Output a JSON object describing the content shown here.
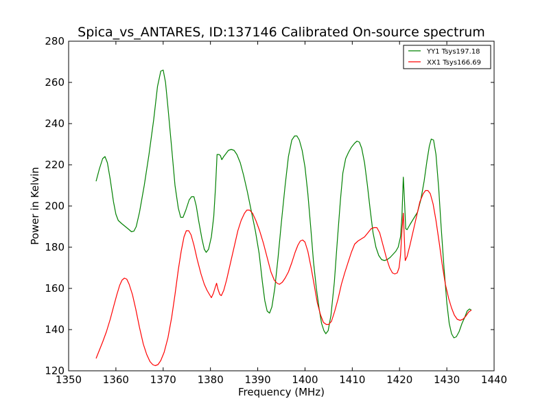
{
  "chart_data": {
    "type": "line",
    "title": "Spica_vs_ANTARES, ID:137146 Calibrated On-source spectrum",
    "xlabel": "Frequency (MHz)",
    "ylabel": "Power in Kelvin",
    "xlim": [
      1350,
      1440
    ],
    "ylim": [
      120,
      280
    ],
    "xticks": [
      1350,
      1360,
      1370,
      1380,
      1390,
      1400,
      1410,
      1420,
      1430,
      1440
    ],
    "yticks": [
      120,
      140,
      160,
      180,
      200,
      220,
      240,
      260,
      280
    ],
    "grid": false,
    "legend_position": "top-right",
    "series": [
      {
        "name": "YY1 Tsys197.18",
        "color": "#008000",
        "points": [
          [
            1355.8,
            212
          ],
          [
            1356.5,
            218
          ],
          [
            1357.2,
            223
          ],
          [
            1357.7,
            224
          ],
          [
            1358.2,
            221
          ],
          [
            1358.8,
            213
          ],
          [
            1359.5,
            202
          ],
          [
            1360.0,
            196
          ],
          [
            1360.5,
            193
          ],
          [
            1361.2,
            191.5
          ],
          [
            1362.0,
            190
          ],
          [
            1362.8,
            188.5
          ],
          [
            1363.3,
            187.5
          ],
          [
            1363.8,
            187.8
          ],
          [
            1364.3,
            190
          ],
          [
            1365.0,
            197
          ],
          [
            1366.0,
            210
          ],
          [
            1367.0,
            225
          ],
          [
            1368.0,
            242
          ],
          [
            1368.8,
            258
          ],
          [
            1369.5,
            265.5
          ],
          [
            1370.0,
            266
          ],
          [
            1370.5,
            260
          ],
          [
            1371.0,
            248
          ],
          [
            1371.8,
            228
          ],
          [
            1372.5,
            210
          ],
          [
            1373.2,
            199
          ],
          [
            1373.7,
            194.5
          ],
          [
            1374.2,
            194.5
          ],
          [
            1374.8,
            198
          ],
          [
            1375.5,
            203
          ],
          [
            1376.0,
            204.5
          ],
          [
            1376.5,
            204.5
          ],
          [
            1377.0,
            200
          ],
          [
            1377.5,
            193
          ],
          [
            1378.2,
            184
          ],
          [
            1378.7,
            179
          ],
          [
            1379.1,
            177.5
          ],
          [
            1379.6,
            179
          ],
          [
            1380.2,
            185
          ],
          [
            1380.7,
            195
          ],
          [
            1381.1,
            210
          ],
          [
            1381.4,
            225
          ],
          [
            1381.8,
            225
          ],
          [
            1382.1,
            224.5
          ],
          [
            1382.4,
            222.5
          ],
          [
            1382.8,
            224
          ],
          [
            1383.3,
            225.5
          ],
          [
            1383.8,
            227
          ],
          [
            1384.4,
            227.5
          ],
          [
            1385.0,
            227
          ],
          [
            1385.6,
            225
          ],
          [
            1386.3,
            221
          ],
          [
            1387.0,
            215
          ],
          [
            1387.8,
            207
          ],
          [
            1388.6,
            198
          ],
          [
            1389.5,
            188
          ],
          [
            1390.3,
            177
          ],
          [
            1391.0,
            163
          ],
          [
            1391.5,
            154
          ],
          [
            1392.0,
            149
          ],
          [
            1392.5,
            148
          ],
          [
            1393.0,
            151
          ],
          [
            1393.6,
            160
          ],
          [
            1394.3,
            175
          ],
          [
            1395.0,
            192
          ],
          [
            1395.8,
            210
          ],
          [
            1396.5,
            224
          ],
          [
            1397.2,
            232
          ],
          [
            1397.8,
            234
          ],
          [
            1398.3,
            234
          ],
          [
            1398.8,
            232
          ],
          [
            1399.4,
            227
          ],
          [
            1400.0,
            219
          ],
          [
            1400.6,
            206
          ],
          [
            1401.2,
            190
          ],
          [
            1401.8,
            173
          ],
          [
            1402.4,
            160
          ],
          [
            1403.0,
            150
          ],
          [
            1403.5,
            143
          ],
          [
            1404.0,
            139.5
          ],
          [
            1404.4,
            138
          ],
          [
            1404.9,
            139.5
          ],
          [
            1405.5,
            147
          ],
          [
            1406.2,
            163
          ],
          [
            1406.8,
            182
          ],
          [
            1407.5,
            203
          ],
          [
            1408.0,
            216
          ],
          [
            1408.6,
            223
          ],
          [
            1409.2,
            226
          ],
          [
            1409.8,
            228.5
          ],
          [
            1410.5,
            230.5
          ],
          [
            1411.0,
            231.5
          ],
          [
            1411.5,
            231
          ],
          [
            1412.0,
            228
          ],
          [
            1412.6,
            221
          ],
          [
            1413.2,
            210
          ],
          [
            1413.8,
            198
          ],
          [
            1414.4,
            187
          ],
          [
            1415.0,
            180
          ],
          [
            1415.6,
            176
          ],
          [
            1416.2,
            174
          ],
          [
            1416.8,
            173.5
          ],
          [
            1417.4,
            174
          ],
          [
            1418.0,
            175
          ],
          [
            1418.6,
            176.5
          ],
          [
            1419.2,
            178
          ],
          [
            1419.7,
            180
          ],
          [
            1420.2,
            185
          ],
          [
            1420.5,
            195
          ],
          [
            1420.8,
            214
          ],
          [
            1421.0,
            205
          ],
          [
            1421.3,
            189
          ],
          [
            1421.6,
            188.5
          ],
          [
            1422.2,
            191
          ],
          [
            1423.0,
            194
          ],
          [
            1423.8,
            197
          ],
          [
            1424.5,
            203
          ],
          [
            1425.2,
            212
          ],
          [
            1425.8,
            222
          ],
          [
            1426.3,
            229
          ],
          [
            1426.7,
            232.5
          ],
          [
            1427.2,
            232
          ],
          [
            1427.7,
            225
          ],
          [
            1428.3,
            208
          ],
          [
            1428.8,
            190
          ],
          [
            1429.4,
            170
          ],
          [
            1430.0,
            153
          ],
          [
            1430.5,
            143
          ],
          [
            1431.0,
            138
          ],
          [
            1431.5,
            136
          ],
          [
            1432.0,
            136.5
          ],
          [
            1432.6,
            139
          ],
          [
            1433.2,
            143
          ],
          [
            1433.8,
            146
          ],
          [
            1434.3,
            149
          ],
          [
            1434.8,
            150
          ],
          [
            1435.2,
            149.5
          ]
        ]
      },
      {
        "name": "XX1 Tsys166.69",
        "color": "#ff0000",
        "points": [
          [
            1355.8,
            126
          ],
          [
            1356.5,
            130
          ],
          [
            1357.2,
            134
          ],
          [
            1358.0,
            139
          ],
          [
            1358.8,
            145
          ],
          [
            1359.5,
            151
          ],
          [
            1360.2,
            157
          ],
          [
            1360.8,
            161.5
          ],
          [
            1361.3,
            164
          ],
          [
            1361.8,
            165
          ],
          [
            1362.3,
            164.5
          ],
          [
            1362.8,
            162
          ],
          [
            1363.5,
            157
          ],
          [
            1364.2,
            150
          ],
          [
            1365.0,
            141
          ],
          [
            1365.8,
            133
          ],
          [
            1366.5,
            128
          ],
          [
            1367.2,
            124.5
          ],
          [
            1367.8,
            123
          ],
          [
            1368.3,
            122.5
          ],
          [
            1368.9,
            123
          ],
          [
            1369.5,
            125
          ],
          [
            1370.2,
            129
          ],
          [
            1371.0,
            136
          ],
          [
            1371.8,
            146
          ],
          [
            1372.5,
            157
          ],
          [
            1373.2,
            169
          ],
          [
            1373.8,
            178
          ],
          [
            1374.4,
            185
          ],
          [
            1374.9,
            188
          ],
          [
            1375.4,
            188
          ],
          [
            1375.9,
            186
          ],
          [
            1376.5,
            181
          ],
          [
            1377.2,
            174
          ],
          [
            1378.0,
            167
          ],
          [
            1378.7,
            162
          ],
          [
            1379.3,
            159
          ],
          [
            1379.8,
            157
          ],
          [
            1380.2,
            155.5
          ],
          [
            1380.6,
            157.5
          ],
          [
            1381.0,
            160.5
          ],
          [
            1381.3,
            162.5
          ],
          [
            1381.6,
            159.5
          ],
          [
            1382.0,
            157
          ],
          [
            1382.3,
            156.5
          ],
          [
            1382.8,
            159
          ],
          [
            1383.4,
            164
          ],
          [
            1384.2,
            172
          ],
          [
            1385.0,
            180
          ],
          [
            1385.8,
            188
          ],
          [
            1386.5,
            193
          ],
          [
            1387.2,
            196.5
          ],
          [
            1387.7,
            198
          ],
          [
            1388.3,
            198
          ],
          [
            1388.9,
            196.5
          ],
          [
            1389.6,
            193
          ],
          [
            1390.4,
            188
          ],
          [
            1391.2,
            182
          ],
          [
            1392.0,
            175
          ],
          [
            1392.8,
            168
          ],
          [
            1393.5,
            164
          ],
          [
            1394.1,
            162.5
          ],
          [
            1394.6,
            162
          ],
          [
            1395.2,
            163
          ],
          [
            1395.8,
            165
          ],
          [
            1396.5,
            168
          ],
          [
            1397.2,
            172.5
          ],
          [
            1397.9,
            177.5
          ],
          [
            1398.5,
            181
          ],
          [
            1399.0,
            183
          ],
          [
            1399.5,
            183.5
          ],
          [
            1400.0,
            182.5
          ],
          [
            1400.6,
            178
          ],
          [
            1401.3,
            170
          ],
          [
            1402.0,
            161
          ],
          [
            1402.6,
            153
          ],
          [
            1403.3,
            147
          ],
          [
            1403.9,
            143.5
          ],
          [
            1404.5,
            142.5
          ],
          [
            1405.0,
            142.5
          ],
          [
            1405.6,
            144
          ],
          [
            1406.3,
            149
          ],
          [
            1407.0,
            155
          ],
          [
            1407.7,
            162
          ],
          [
            1408.4,
            167.5
          ],
          [
            1409.1,
            172.5
          ],
          [
            1409.8,
            177.5
          ],
          [
            1410.5,
            181.5
          ],
          [
            1411.2,
            183
          ],
          [
            1411.9,
            184
          ],
          [
            1412.6,
            185
          ],
          [
            1413.3,
            187
          ],
          [
            1414.0,
            189
          ],
          [
            1414.6,
            189.5
          ],
          [
            1415.2,
            189.5
          ],
          [
            1415.8,
            187
          ],
          [
            1416.5,
            181
          ],
          [
            1417.2,
            175
          ],
          [
            1417.9,
            170
          ],
          [
            1418.5,
            167.5
          ],
          [
            1419.0,
            167
          ],
          [
            1419.5,
            167.5
          ],
          [
            1419.9,
            170
          ],
          [
            1420.2,
            176
          ],
          [
            1420.5,
            188
          ],
          [
            1420.8,
            196.5
          ],
          [
            1421.0,
            185
          ],
          [
            1421.2,
            173.5
          ],
          [
            1421.6,
            175.5
          ],
          [
            1422.2,
            181
          ],
          [
            1422.9,
            188
          ],
          [
            1423.6,
            195
          ],
          [
            1424.3,
            202
          ],
          [
            1425.0,
            206
          ],
          [
            1425.5,
            207.5
          ],
          [
            1426.0,
            207.5
          ],
          [
            1426.5,
            206
          ],
          [
            1427.1,
            201
          ],
          [
            1427.7,
            193
          ],
          [
            1428.4,
            182
          ],
          [
            1429.0,
            172
          ],
          [
            1429.7,
            162
          ],
          [
            1430.4,
            155
          ],
          [
            1431.0,
            150.5
          ],
          [
            1431.6,
            147
          ],
          [
            1432.2,
            145
          ],
          [
            1432.8,
            144.5
          ],
          [
            1433.4,
            145
          ],
          [
            1434.0,
            146.5
          ],
          [
            1434.6,
            148.5
          ],
          [
            1435.2,
            149.5
          ]
        ]
      }
    ]
  }
}
